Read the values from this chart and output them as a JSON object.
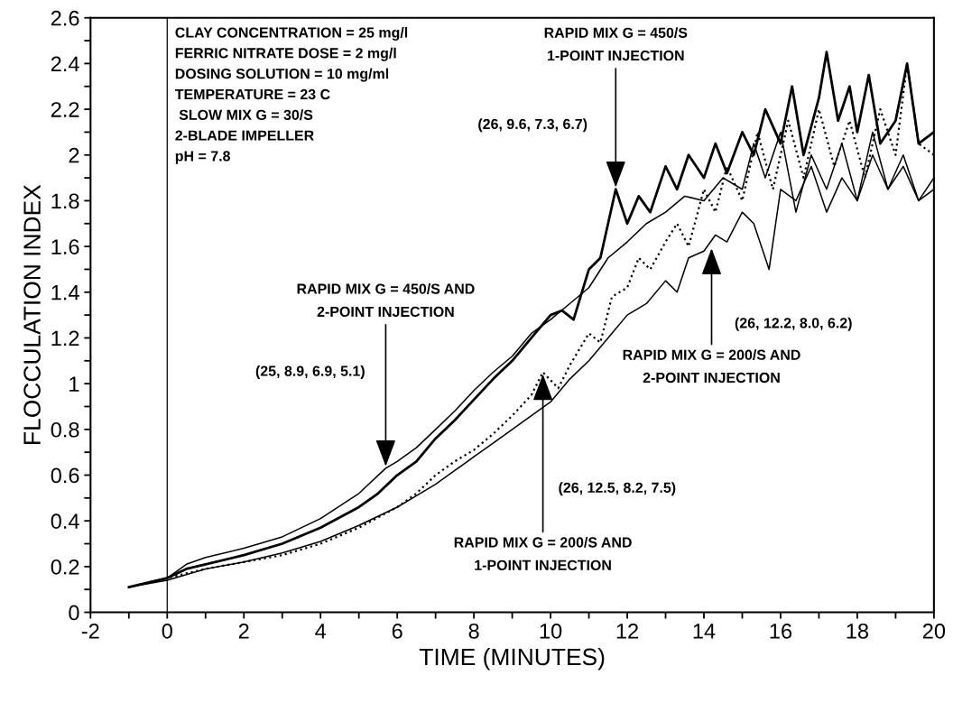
{
  "chart_data": {
    "type": "line",
    "xlabel": "TIME (MINUTES)",
    "ylabel": "FLOCCULATION INDEX",
    "xlim": [
      -2,
      20
    ],
    "ylim": [
      0,
      2.6
    ],
    "xticks": [
      -2,
      {
        "value": -1,
        "label": null
      },
      0,
      {
        "value": 1,
        "label": null
      },
      2,
      {
        "value": 3,
        "label": null
      },
      4,
      {
        "value": 5,
        "label": null
      },
      6,
      {
        "value": 7,
        "label": null
      },
      8,
      {
        "value": 9,
        "label": null
      },
      10,
      {
        "value": 11,
        "label": null
      },
      12,
      {
        "value": 13,
        "label": null
      },
      14,
      {
        "value": 15,
        "label": null
      },
      16,
      {
        "value": 17,
        "label": null
      },
      18,
      {
        "value": 19,
        "label": null
      },
      20
    ],
    "yticks": [
      0,
      {
        "value": 0.1,
        "label": null
      },
      0.2,
      {
        "value": 0.3,
        "label": null
      },
      0.4,
      {
        "value": 0.5,
        "label": null
      },
      0.6,
      {
        "value": 0.7,
        "label": null
      },
      0.8,
      {
        "value": 0.9,
        "label": null
      },
      1,
      {
        "value": 1.1,
        "label": null
      },
      1.2,
      {
        "value": 1.3,
        "label": null
      },
      1.4,
      {
        "value": 1.5,
        "label": null
      },
      1.6,
      {
        "value": 1.7,
        "label": null
      },
      1.8,
      {
        "value": 1.9,
        "label": null
      },
      2,
      {
        "value": 2.1,
        "label": null
      },
      2.2,
      {
        "value": 2.3,
        "label": null
      },
      2.4,
      {
        "value": 2.5,
        "label": null
      },
      2.6
    ],
    "grid": false,
    "legend": false,
    "marker": "none",
    "series": [
      {
        "color": "#000000",
        "line_style": "solid",
        "x": [
          -1,
          0,
          0.5,
          1,
          2,
          3,
          4,
          5,
          5.5,
          6,
          6.5,
          7,
          7.5,
          8,
          8.5,
          9,
          9.5,
          10,
          10.3,
          10.6,
          11,
          11.3,
          11.7,
          12,
          12.3,
          12.6,
          13,
          13.3,
          13.6,
          14,
          14.3,
          14.6,
          15,
          15.3,
          15.6,
          16,
          16.3,
          16.6,
          17,
          17.2,
          17.5,
          17.8,
          18,
          18.3,
          18.6,
          19,
          19.3,
          19.6,
          20
        ],
        "values": [
          0.11,
          0.15,
          0.19,
          0.21,
          0.25,
          0.3,
          0.37,
          0.46,
          0.52,
          0.6,
          0.66,
          0.76,
          0.84,
          0.93,
          1.02,
          1.1,
          1.2,
          1.3,
          1.32,
          1.28,
          1.5,
          1.55,
          1.85,
          1.7,
          1.82,
          1.75,
          1.95,
          1.85,
          2.0,
          1.9,
          2.05,
          1.92,
          2.1,
          2.0,
          2.2,
          2.05,
          2.3,
          2.0,
          2.25,
          2.45,
          2.15,
          2.3,
          2.1,
          2.35,
          2.05,
          2.15,
          2.4,
          2.05,
          2.1
        ]
      },
      {
        "color": "#000000",
        "line_style": "solid",
        "x": [
          -1,
          0,
          0.5,
          1,
          2,
          3,
          4,
          5,
          5.7,
          6,
          6.5,
          7,
          7.5,
          8,
          8.5,
          9,
          9.5,
          10,
          10.5,
          11,
          11.5,
          12,
          12.5,
          13,
          13.5,
          14,
          14.5,
          15,
          15.3,
          15.6,
          16,
          16.4,
          16.8,
          17.2,
          17.6,
          18,
          18.4,
          18.8,
          19.2,
          19.6,
          20
        ],
        "values": [
          0.11,
          0.15,
          0.21,
          0.24,
          0.28,
          0.33,
          0.41,
          0.52,
          0.63,
          0.66,
          0.72,
          0.8,
          0.88,
          0.97,
          1.05,
          1.12,
          1.22,
          1.28,
          1.35,
          1.42,
          1.55,
          1.62,
          1.7,
          1.75,
          1.82,
          1.8,
          1.9,
          1.85,
          2.05,
          1.9,
          2.1,
          1.75,
          2.0,
          1.85,
          2.05,
          1.8,
          2.1,
          1.85,
          2.0,
          1.8,
          1.9
        ]
      },
      {
        "color": "#000000",
        "line_style": "dotted",
        "x": [
          -1,
          0,
          1,
          2,
          3,
          4,
          5,
          6,
          6.5,
          7,
          7.5,
          8,
          8.5,
          9,
          9.5,
          9.8,
          10.2,
          10.5,
          11,
          11.3,
          11.6,
          12,
          12.3,
          12.6,
          13,
          13.3,
          13.6,
          14,
          14.3,
          14.6,
          15,
          15.4,
          15.8,
          16.2,
          16.6,
          17,
          17.4,
          17.8,
          18.2,
          18.6,
          19,
          19.3,
          19.6,
          20
        ],
        "values": [
          0.11,
          0.15,
          0.19,
          0.22,
          0.25,
          0.3,
          0.37,
          0.46,
          0.52,
          0.6,
          0.66,
          0.71,
          0.78,
          0.86,
          0.95,
          1.05,
          0.98,
          1.08,
          1.22,
          1.18,
          1.38,
          1.42,
          1.55,
          1.5,
          1.62,
          1.7,
          1.6,
          1.85,
          1.75,
          1.95,
          1.8,
          2.1,
          1.85,
          2.15,
          1.9,
          2.2,
          1.95,
          2.15,
          1.9,
          2.2,
          2.0,
          2.4,
          2.05,
          2.0
        ]
      },
      {
        "color": "#000000",
        "line_style": "solid",
        "x": [
          -1,
          0,
          1,
          2,
          3,
          4,
          5,
          6,
          6.5,
          7,
          7.5,
          8,
          8.5,
          9,
          9.5,
          10,
          10.5,
          11,
          11.5,
          12,
          12.5,
          13,
          13.3,
          13.6,
          14,
          14.3,
          14.6,
          15,
          15.3,
          15.7,
          16,
          16.4,
          16.8,
          17.2,
          17.6,
          18,
          18.4,
          18.8,
          19.2,
          19.6,
          20
        ],
        "values": [
          0.11,
          0.14,
          0.19,
          0.22,
          0.26,
          0.31,
          0.38,
          0.46,
          0.51,
          0.56,
          0.62,
          0.68,
          0.74,
          0.8,
          0.86,
          0.92,
          1.02,
          1.1,
          1.2,
          1.3,
          1.35,
          1.45,
          1.4,
          1.55,
          1.58,
          1.65,
          1.62,
          1.75,
          1.7,
          1.5,
          1.85,
          1.8,
          1.95,
          1.75,
          1.9,
          1.8,
          2.0,
          1.85,
          1.95,
          1.8,
          1.85
        ]
      }
    ],
    "ref_lines": [
      {
        "axis": "x",
        "value": 0,
        "color": "#000000"
      }
    ],
    "annotations": [
      "CLAY CONCENTRATION = 25 mg/l",
      "FERRIC NITRATE DOSE = 2 mg/l",
      "DOSING SOLUTION = 10 mg/ml",
      "TEMPERATURE = 23 C",
      " SLOW MIX G = 30/S",
      "2-BLADE IMPELLER",
      "pH = 7.8",
      {
        "text": "RAPID MIX G = 450/S\n1-POINT INJECTION",
        "x": 11.7,
        "y": 1.85
      },
      "(26, 9.6, 7.3, 6.7)",
      {
        "text": "RAPID MIX G = 450/S AND\n2-POINT INJECTION",
        "x": 5.7,
        "y": 0.63
      },
      "(25, 8.9, 6.9, 5.1)",
      {
        "text": "RAPID MIX G = 200/S AND\n1-POINT INJECTION",
        "x": 9.8,
        "y": 1.05
      },
      "(26, 12.5, 8.2, 7.5)",
      {
        "text": "RAPID MIX G = 200/S AND\n2-POINT INJECTION",
        "x": 14.2,
        "y": 1.6
      },
      "(26, 12.2, 8.0, 6.2)"
    ]
  }
}
